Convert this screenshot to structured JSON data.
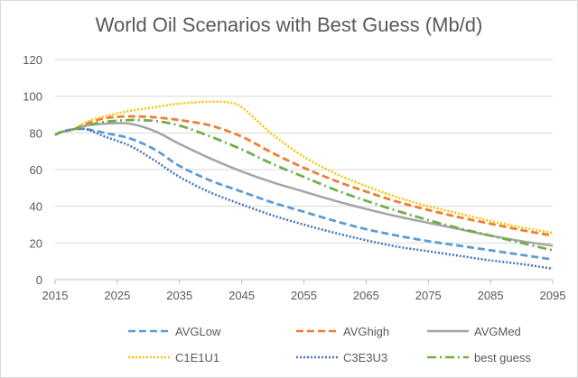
{
  "chart_data": {
    "type": "line",
    "title": "World Oil Scenarios with Best Guess (Mb/d)",
    "xlabel": "",
    "ylabel": "",
    "xlim": [
      2015,
      2095
    ],
    "ylim": [
      0,
      120
    ],
    "x_ticks": [
      "2015",
      "2025",
      "2035",
      "2045",
      "2055",
      "2065",
      "2075",
      "2085",
      "2095"
    ],
    "y_ticks": [
      "0",
      "20",
      "40",
      "60",
      "80",
      "100",
      "120"
    ],
    "grid": "horizontal",
    "legend_position": "bottom",
    "series": [
      {
        "name": "AVGLow",
        "color": "#5b9bd5",
        "dash": "dashed",
        "points": [
          [
            2015,
            79
          ],
          [
            2016,
            80.5
          ],
          [
            2018,
            82
          ],
          [
            2020,
            82
          ],
          [
            2023,
            80
          ],
          [
            2027,
            77
          ],
          [
            2031,
            71
          ],
          [
            2035,
            62
          ],
          [
            2040,
            54
          ],
          [
            2045,
            48
          ],
          [
            2050,
            42
          ],
          [
            2055,
            37
          ],
          [
            2060,
            32
          ],
          [
            2065,
            27.5
          ],
          [
            2070,
            24
          ],
          [
            2075,
            21
          ],
          [
            2080,
            18.5
          ],
          [
            2085,
            16
          ],
          [
            2090,
            13.5
          ],
          [
            2095,
            11
          ]
        ]
      },
      {
        "name": "AVGhigh",
        "color": "#ed7d31",
        "dash": "dashed",
        "points": [
          [
            2015,
            79
          ],
          [
            2016,
            80.5
          ],
          [
            2018,
            82
          ],
          [
            2020,
            85
          ],
          [
            2023,
            88
          ],
          [
            2027,
            89
          ],
          [
            2031,
            88.5
          ],
          [
            2035,
            87
          ],
          [
            2040,
            84
          ],
          [
            2045,
            78
          ],
          [
            2050,
            69
          ],
          [
            2055,
            61
          ],
          [
            2060,
            54
          ],
          [
            2065,
            48
          ],
          [
            2070,
            42.5
          ],
          [
            2075,
            38
          ],
          [
            2080,
            34
          ],
          [
            2085,
            30.5
          ],
          [
            2090,
            27
          ],
          [
            2095,
            24
          ]
        ]
      },
      {
        "name": "AVGMed",
        "color": "#a5a5a5",
        "dash": "solid",
        "points": [
          [
            2015,
            79
          ],
          [
            2016,
            80.5
          ],
          [
            2018,
            82
          ],
          [
            2020,
            84
          ],
          [
            2023,
            85
          ],
          [
            2027,
            85
          ],
          [
            2031,
            81
          ],
          [
            2035,
            74
          ],
          [
            2040,
            66
          ],
          [
            2045,
            59
          ],
          [
            2050,
            53
          ],
          [
            2055,
            48
          ],
          [
            2060,
            43
          ],
          [
            2065,
            38.5
          ],
          [
            2070,
            34.5
          ],
          [
            2075,
            31
          ],
          [
            2080,
            27.5
          ],
          [
            2085,
            24
          ],
          [
            2090,
            21
          ],
          [
            2095,
            18.5
          ]
        ]
      },
      {
        "name": "C1E1U1",
        "color": "#ffc000",
        "dash": "dotted",
        "points": [
          [
            2015,
            79
          ],
          [
            2016,
            80.5
          ],
          [
            2018,
            82
          ],
          [
            2020,
            86
          ],
          [
            2023,
            89
          ],
          [
            2027,
            92
          ],
          [
            2031,
            94
          ],
          [
            2035,
            96
          ],
          [
            2040,
            97
          ],
          [
            2043,
            96.5
          ],
          [
            2045,
            94
          ],
          [
            2048,
            85
          ],
          [
            2050,
            79
          ],
          [
            2055,
            67
          ],
          [
            2060,
            58
          ],
          [
            2065,
            51
          ],
          [
            2070,
            45
          ],
          [
            2075,
            40
          ],
          [
            2080,
            36
          ],
          [
            2085,
            32
          ],
          [
            2090,
            28.5
          ],
          [
            2095,
            25.5
          ]
        ]
      },
      {
        "name": "C3E3U3",
        "color": "#4472c4",
        "dash": "dotted",
        "points": [
          [
            2015,
            79
          ],
          [
            2016,
            80.5
          ],
          [
            2018,
            82
          ],
          [
            2020,
            82
          ],
          [
            2023,
            78
          ],
          [
            2027,
            73
          ],
          [
            2031,
            65
          ],
          [
            2035,
            56
          ],
          [
            2040,
            47.5
          ],
          [
            2045,
            41
          ],
          [
            2050,
            35
          ],
          [
            2055,
            30
          ],
          [
            2060,
            25.5
          ],
          [
            2065,
            21.5
          ],
          [
            2070,
            18
          ],
          [
            2075,
            15.5
          ],
          [
            2080,
            13
          ],
          [
            2085,
            10.5
          ],
          [
            2090,
            8.5
          ],
          [
            2095,
            6
          ]
        ]
      },
      {
        "name": "best guess",
        "color": "#70ad47",
        "dash": "dashdot",
        "points": [
          [
            2015,
            79
          ],
          [
            2016,
            80.5
          ],
          [
            2018,
            82
          ],
          [
            2020,
            84
          ],
          [
            2023,
            86
          ],
          [
            2027,
            87
          ],
          [
            2031,
            86.5
          ],
          [
            2035,
            84
          ],
          [
            2040,
            78
          ],
          [
            2045,
            71
          ],
          [
            2050,
            63
          ],
          [
            2055,
            56
          ],
          [
            2060,
            49
          ],
          [
            2065,
            43
          ],
          [
            2070,
            37.5
          ],
          [
            2075,
            32.5
          ],
          [
            2080,
            28
          ],
          [
            2085,
            24
          ],
          [
            2090,
            20
          ],
          [
            2095,
            16
          ]
        ]
      }
    ]
  }
}
